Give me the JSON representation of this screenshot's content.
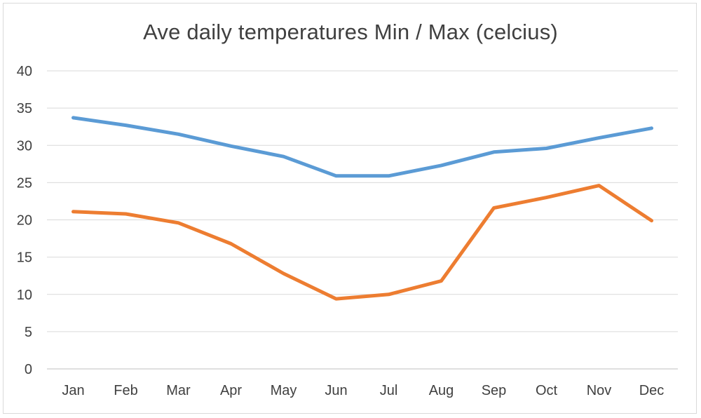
{
  "chart_data": {
    "type": "line",
    "title": "Ave daily temperatures Min / Max (celcius)",
    "xlabel": "",
    "ylabel": "",
    "categories": [
      "Jan",
      "Feb",
      "Mar",
      "Apr",
      "May",
      "Jun",
      "Jul",
      "Aug",
      "Sep",
      "Oct",
      "Nov",
      "Dec"
    ],
    "ylim": [
      0,
      40
    ],
    "yticks": [
      "0",
      "5",
      "10",
      "15",
      "20",
      "25",
      "30",
      "35",
      "40"
    ],
    "grid": true,
    "legend": "none",
    "series": [
      {
        "color": "#5B9BD5",
        "values": [
          33.7,
          32.7,
          31.5,
          29.9,
          28.5,
          25.9,
          25.9,
          27.3,
          29.1,
          29.6,
          31.0,
          32.3
        ]
      },
      {
        "color": "#ED7D31",
        "values": [
          21.1,
          20.8,
          19.6,
          16.8,
          12.8,
          9.4,
          10.0,
          11.8,
          21.6,
          23.0,
          24.6,
          19.9
        ]
      }
    ]
  }
}
